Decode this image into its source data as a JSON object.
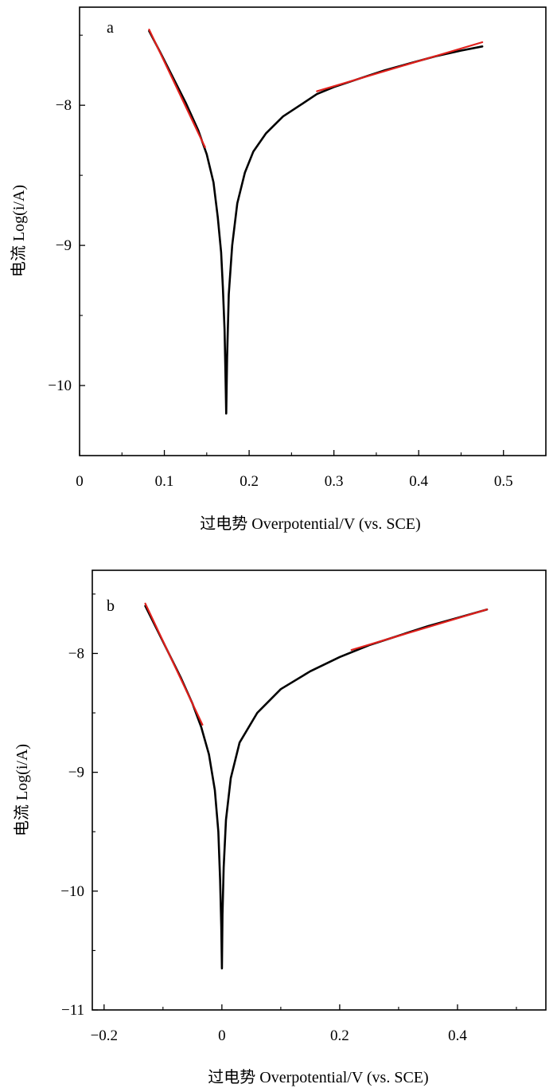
{
  "chart_data": [
    {
      "panel": "a",
      "type": "line",
      "xlabel": "过电势 Overpotential/V (vs. SCE)",
      "ylabel": "电流 Log(i/A)",
      "xlim": [
        0,
        0.55
      ],
      "ylim": [
        -10.5,
        -7.3
      ],
      "xticks": [
        0,
        0.1,
        0.2,
        0.3,
        0.4,
        0.5
      ],
      "xtick_labels": [
        "0",
        "0.1",
        "0.2",
        "0.3",
        "0.4",
        "0.5"
      ],
      "yticks": [
        -8,
        -9,
        -10
      ],
      "ytick_labels": [
        "−8",
        "−9",
        "−10"
      ],
      "grid": false,
      "series": [
        {
          "color": "#000000",
          "points": [
            [
              0.082,
              -7.47
            ],
            [
              0.095,
              -7.62
            ],
            [
              0.11,
              -7.8
            ],
            [
              0.125,
              -7.98
            ],
            [
              0.14,
              -8.18
            ],
            [
              0.15,
              -8.35
            ],
            [
              0.158,
              -8.55
            ],
            [
              0.163,
              -8.8
            ],
            [
              0.167,
              -9.05
            ],
            [
              0.169,
              -9.3
            ],
            [
              0.171,
              -9.6
            ],
            [
              0.172,
              -9.9
            ],
            [
              0.173,
              -10.2
            ],
            [
              0.174,
              -9.8
            ],
            [
              0.176,
              -9.35
            ],
            [
              0.18,
              -9.0
            ],
            [
              0.186,
              -8.7
            ],
            [
              0.195,
              -8.48
            ],
            [
              0.205,
              -8.33
            ],
            [
              0.22,
              -8.2
            ],
            [
              0.24,
              -8.08
            ],
            [
              0.26,
              -8.0
            ],
            [
              0.28,
              -7.92
            ],
            [
              0.3,
              -7.87
            ],
            [
              0.33,
              -7.81
            ],
            [
              0.36,
              -7.75
            ],
            [
              0.39,
              -7.7
            ],
            [
              0.42,
              -7.65
            ],
            [
              0.45,
              -7.61
            ],
            [
              0.475,
              -7.58
            ]
          ]
        },
        {
          "color": "#e0201c",
          "points": [
            [
              0.082,
              -7.46
            ],
            [
              0.148,
              -8.3
            ]
          ]
        },
        {
          "color": "#e0201c",
          "points": [
            [
              0.28,
              -7.9
            ],
            [
              0.475,
              -7.55
            ]
          ]
        }
      ]
    },
    {
      "panel": "b",
      "type": "line",
      "xlabel": "过电势 Overpotential/V (vs. SCE)",
      "ylabel": "电流 Log(i/A)",
      "xlim": [
        -0.22,
        0.55
      ],
      "ylim": [
        -11,
        -7.3
      ],
      "xticks": [
        -0.2,
        0,
        0.2,
        0.4
      ],
      "xtick_labels": [
        "−0.2",
        "0",
        "0.2",
        "0.4"
      ],
      "yticks": [
        -8,
        -9,
        -10,
        -11
      ],
      "ytick_labels": [
        "−8",
        "−9",
        "−10",
        "−11"
      ],
      "grid": false,
      "series": [
        {
          "color": "#000000",
          "points": [
            [
              -0.13,
              -7.6
            ],
            [
              -0.11,
              -7.8
            ],
            [
              -0.09,
              -8.0
            ],
            [
              -0.07,
              -8.2
            ],
            [
              -0.05,
              -8.42
            ],
            [
              -0.035,
              -8.62
            ],
            [
              -0.022,
              -8.85
            ],
            [
              -0.012,
              -9.15
            ],
            [
              -0.006,
              -9.5
            ],
            [
              -0.003,
              -9.9
            ],
            [
              -0.001,
              -10.3
            ],
            [
              0.0,
              -10.65
            ],
            [
              0.001,
              -10.2
            ],
            [
              0.003,
              -9.8
            ],
            [
              0.007,
              -9.4
            ],
            [
              0.015,
              -9.05
            ],
            [
              0.03,
              -8.75
            ],
            [
              0.06,
              -8.5
            ],
            [
              0.1,
              -8.3
            ],
            [
              0.15,
              -8.15
            ],
            [
              0.2,
              -8.03
            ],
            [
              0.25,
              -7.93
            ],
            [
              0.3,
              -7.85
            ],
            [
              0.35,
              -7.77
            ],
            [
              0.4,
              -7.7
            ],
            [
              0.45,
              -7.63
            ]
          ]
        },
        {
          "color": "#e0201c",
          "points": [
            [
              -0.13,
              -7.58
            ],
            [
              -0.033,
              -8.6
            ]
          ]
        },
        {
          "color": "#e0201c",
          "points": [
            [
              0.22,
              -7.97
            ],
            [
              0.45,
              -7.63
            ]
          ]
        }
      ]
    }
  ]
}
